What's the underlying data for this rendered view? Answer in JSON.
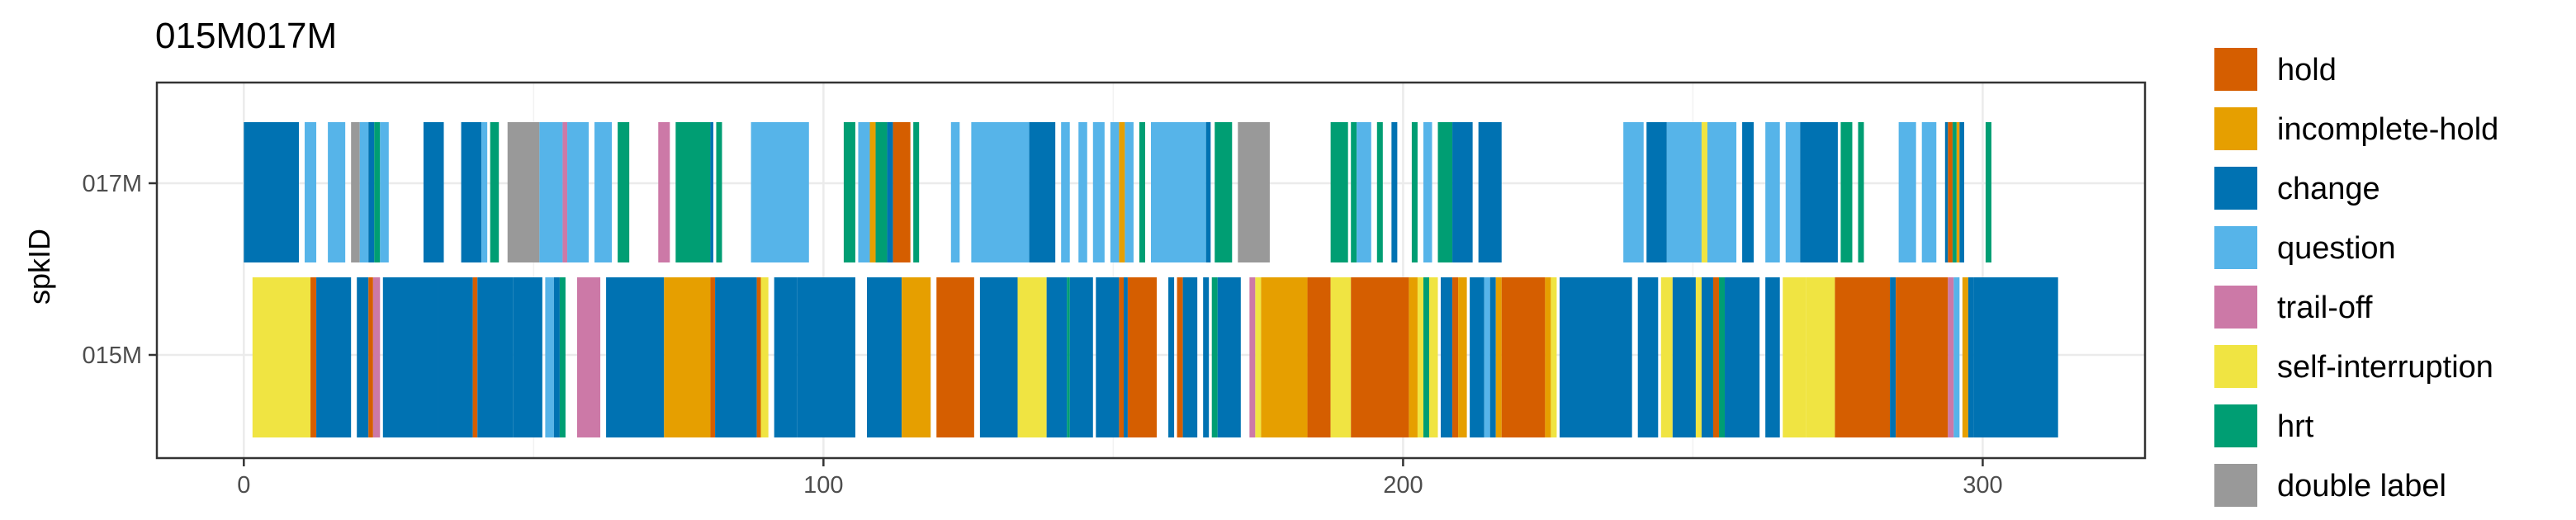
{
  "chart_data": {
    "type": "timeline",
    "title": "015M017M",
    "xlabel": "",
    "ylabel": "spkID",
    "xlim": [
      -15,
      328
    ],
    "x_ticks": [
      0,
      100,
      200,
      300
    ],
    "speakers": [
      "017M",
      "015M"
    ],
    "grid": true,
    "legend_position": "right",
    "categories": [
      {
        "name": "hold",
        "color": "#D55E00"
      },
      {
        "name": "incomplete-hold",
        "color": "#E69F00"
      },
      {
        "name": "change",
        "color": "#0072B2"
      },
      {
        "name": "question",
        "color": "#56B4E9"
      },
      {
        "name": "trail-off",
        "color": "#CC79A7"
      },
      {
        "name": "self-interruption",
        "color": "#F0E442"
      },
      {
        "name": "hrt",
        "color": "#009E73"
      },
      {
        "name": "double label",
        "color": "#999999"
      }
    ],
    "segments": [
      {
        "speaker": "017M",
        "category": "change",
        "start": 0.0,
        "end": 9.5
      },
      {
        "speaker": "017M",
        "category": "question",
        "start": 10.5,
        "end": 12.5
      },
      {
        "speaker": "017M",
        "category": "question",
        "start": 14.5,
        "end": 17.5
      },
      {
        "speaker": "017M",
        "category": "double label",
        "start": 18.5,
        "end": 20.0
      },
      {
        "speaker": "017M",
        "category": "question",
        "start": 20.0,
        "end": 21.5
      },
      {
        "speaker": "017M",
        "category": "change",
        "start": 21.5,
        "end": 22.5
      },
      {
        "speaker": "017M",
        "category": "hrt",
        "start": 22.5,
        "end": 23.5
      },
      {
        "speaker": "017M",
        "category": "question",
        "start": 23.5,
        "end": 25.0
      },
      {
        "speaker": "017M",
        "category": "change",
        "start": 31.0,
        "end": 34.5
      },
      {
        "speaker": "017M",
        "category": "change",
        "start": 37.5,
        "end": 41.0
      },
      {
        "speaker": "017M",
        "category": "question",
        "start": 41.0,
        "end": 42.0
      },
      {
        "speaker": "017M",
        "category": "hrt",
        "start": 42.5,
        "end": 44.0
      },
      {
        "speaker": "017M",
        "category": "double label",
        "start": 45.5,
        "end": 51.0
      },
      {
        "speaker": "017M",
        "category": "question",
        "start": 51.0,
        "end": 55.0
      },
      {
        "speaker": "017M",
        "category": "trail-off",
        "start": 55.0,
        "end": 55.8
      },
      {
        "speaker": "017M",
        "category": "question",
        "start": 55.8,
        "end": 59.5
      },
      {
        "speaker": "017M",
        "category": "question",
        "start": 60.5,
        "end": 63.5
      },
      {
        "speaker": "017M",
        "category": "hrt",
        "start": 64.5,
        "end": 66.5
      },
      {
        "speaker": "017M",
        "category": "trail-off",
        "start": 71.5,
        "end": 73.5
      },
      {
        "speaker": "017M",
        "category": "hrt",
        "start": 74.5,
        "end": 80.5
      },
      {
        "speaker": "017M",
        "category": "change",
        "start": 80.5,
        "end": 81.0
      },
      {
        "speaker": "017M",
        "category": "hrt",
        "start": 81.5,
        "end": 82.5
      },
      {
        "speaker": "017M",
        "category": "question",
        "start": 87.5,
        "end": 97.5
      },
      {
        "speaker": "017M",
        "category": "hrt",
        "start": 103.5,
        "end": 105.5
      },
      {
        "speaker": "017M",
        "category": "question",
        "start": 106.0,
        "end": 108.0
      },
      {
        "speaker": "017M",
        "category": "incomplete-hold",
        "start": 108.0,
        "end": 109.0
      },
      {
        "speaker": "017M",
        "category": "hrt",
        "start": 109.0,
        "end": 111.0
      },
      {
        "speaker": "017M",
        "category": "change",
        "start": 111.0,
        "end": 112.0
      },
      {
        "speaker": "017M",
        "category": "hold",
        "start": 112.0,
        "end": 115.0
      },
      {
        "speaker": "017M",
        "category": "hrt",
        "start": 115.5,
        "end": 116.5
      },
      {
        "speaker": "017M",
        "category": "question",
        "start": 122.0,
        "end": 123.5
      },
      {
        "speaker": "017M",
        "category": "question",
        "start": 125.5,
        "end": 135.5
      },
      {
        "speaker": "017M",
        "category": "change",
        "start": 135.5,
        "end": 140.0
      },
      {
        "speaker": "017M",
        "category": "question",
        "start": 141.0,
        "end": 142.5
      },
      {
        "speaker": "017M",
        "category": "question",
        "start": 144.0,
        "end": 145.5
      },
      {
        "speaker": "017M",
        "category": "question",
        "start": 146.5,
        "end": 148.5
      },
      {
        "speaker": "017M",
        "category": "question",
        "start": 149.5,
        "end": 151.0
      },
      {
        "speaker": "017M",
        "category": "incomplete-hold",
        "start": 151.0,
        "end": 152.0
      },
      {
        "speaker": "017M",
        "category": "question",
        "start": 152.0,
        "end": 153.5
      },
      {
        "speaker": "017M",
        "category": "hrt",
        "start": 154.5,
        "end": 155.5
      },
      {
        "speaker": "017M",
        "category": "question",
        "start": 156.5,
        "end": 166.0
      },
      {
        "speaker": "017M",
        "category": "change",
        "start": 166.0,
        "end": 166.8
      },
      {
        "speaker": "017M",
        "category": "hrt",
        "start": 167.5,
        "end": 170.5
      },
      {
        "speaker": "017M",
        "category": "double label",
        "start": 171.5,
        "end": 177.0
      },
      {
        "speaker": "017M",
        "category": "hrt",
        "start": 187.5,
        "end": 190.5
      },
      {
        "speaker": "017M",
        "category": "hrt",
        "start": 191.0,
        "end": 192.0
      },
      {
        "speaker": "017M",
        "category": "question",
        "start": 192.0,
        "end": 194.5
      },
      {
        "speaker": "017M",
        "category": "hrt",
        "start": 195.5,
        "end": 196.5
      },
      {
        "speaker": "017M",
        "category": "change",
        "start": 198.0,
        "end": 199.0
      },
      {
        "speaker": "017M",
        "category": "hrt",
        "start": 201.5,
        "end": 202.5
      },
      {
        "speaker": "017M",
        "category": "question",
        "start": 203.5,
        "end": 205.0
      },
      {
        "speaker": "017M",
        "category": "hrt",
        "start": 206.0,
        "end": 208.5
      },
      {
        "speaker": "017M",
        "category": "change",
        "start": 208.5,
        "end": 212.0
      },
      {
        "speaker": "017M",
        "category": "change",
        "start": 213.0,
        "end": 217.0
      },
      {
        "speaker": "017M",
        "category": "question",
        "start": 238.0,
        "end": 241.5
      },
      {
        "speaker": "017M",
        "category": "change",
        "start": 242.0,
        "end": 245.5
      },
      {
        "speaker": "017M",
        "category": "question",
        "start": 245.5,
        "end": 251.5
      },
      {
        "speaker": "017M",
        "category": "self-interruption",
        "start": 251.5,
        "end": 252.5
      },
      {
        "speaker": "017M",
        "category": "question",
        "start": 252.5,
        "end": 257.5
      },
      {
        "speaker": "017M",
        "category": "change",
        "start": 258.5,
        "end": 260.5
      },
      {
        "speaker": "017M",
        "category": "question",
        "start": 262.5,
        "end": 265.0
      },
      {
        "speaker": "017M",
        "category": "question",
        "start": 266.0,
        "end": 268.5
      },
      {
        "speaker": "017M",
        "category": "change",
        "start": 268.5,
        "end": 275.0
      },
      {
        "speaker": "017M",
        "category": "hrt",
        "start": 275.5,
        "end": 277.5
      },
      {
        "speaker": "017M",
        "category": "hrt",
        "start": 278.5,
        "end": 279.5
      },
      {
        "speaker": "017M",
        "category": "question",
        "start": 285.5,
        "end": 288.5
      },
      {
        "speaker": "017M",
        "category": "question",
        "start": 289.5,
        "end": 292.0
      },
      {
        "speaker": "017M",
        "category": "change",
        "start": 293.5,
        "end": 294.0
      },
      {
        "speaker": "017M",
        "category": "hold",
        "start": 294.0,
        "end": 294.8
      },
      {
        "speaker": "017M",
        "category": "hrt",
        "start": 294.8,
        "end": 295.5
      },
      {
        "speaker": "017M",
        "category": "incomplete-hold",
        "start": 295.5,
        "end": 296.0
      },
      {
        "speaker": "017M",
        "category": "change",
        "start": 296.0,
        "end": 296.8
      },
      {
        "speaker": "017M",
        "category": "hrt",
        "start": 300.5,
        "end": 301.5
      },
      {
        "speaker": "015M",
        "category": "self-interruption",
        "start": 1.5,
        "end": 11.5
      },
      {
        "speaker": "015M",
        "category": "hold",
        "start": 11.5,
        "end": 12.5
      },
      {
        "speaker": "015M",
        "category": "change",
        "start": 12.5,
        "end": 18.5
      },
      {
        "speaker": "015M",
        "category": "change",
        "start": 19.5,
        "end": 21.5
      },
      {
        "speaker": "015M",
        "category": "hold",
        "start": 21.5,
        "end": 22.3
      },
      {
        "speaker": "015M",
        "category": "trail-off",
        "start": 22.3,
        "end": 23.5
      },
      {
        "speaker": "015M",
        "category": "change",
        "start": 24.0,
        "end": 33.5
      },
      {
        "speaker": "015M",
        "category": "change",
        "start": 33.5,
        "end": 39.5
      },
      {
        "speaker": "015M",
        "category": "hold",
        "start": 39.5,
        "end": 40.3
      },
      {
        "speaker": "015M",
        "category": "change",
        "start": 40.3,
        "end": 46.5
      },
      {
        "speaker": "015M",
        "category": "change",
        "start": 46.5,
        "end": 51.5
      },
      {
        "speaker": "015M",
        "category": "question",
        "start": 52.0,
        "end": 53.5
      },
      {
        "speaker": "015M",
        "category": "change",
        "start": 53.5,
        "end": 54.5
      },
      {
        "speaker": "015M",
        "category": "hrt",
        "start": 54.5,
        "end": 55.5
      },
      {
        "speaker": "015M",
        "category": "trail-off",
        "start": 57.5,
        "end": 61.5
      },
      {
        "speaker": "015M",
        "category": "change",
        "start": 62.5,
        "end": 72.5
      },
      {
        "speaker": "015M",
        "category": "incomplete-hold",
        "start": 72.5,
        "end": 80.5
      },
      {
        "speaker": "015M",
        "category": "hold",
        "start": 80.5,
        "end": 81.3
      },
      {
        "speaker": "015M",
        "category": "change",
        "start": 81.3,
        "end": 88.5
      },
      {
        "speaker": "015M",
        "category": "hold",
        "start": 88.5,
        "end": 89.2
      },
      {
        "speaker": "015M",
        "category": "self-interruption",
        "start": 89.2,
        "end": 90.5
      },
      {
        "speaker": "015M",
        "category": "change",
        "start": 91.5,
        "end": 95.5
      },
      {
        "speaker": "015M",
        "category": "change",
        "start": 95.5,
        "end": 105.5
      },
      {
        "speaker": "015M",
        "category": "change",
        "start": 107.5,
        "end": 113.5
      },
      {
        "speaker": "015M",
        "category": "incomplete-hold",
        "start": 113.5,
        "end": 118.5
      },
      {
        "speaker": "015M",
        "category": "hold",
        "start": 119.5,
        "end": 126.0
      },
      {
        "speaker": "015M",
        "category": "change",
        "start": 127.0,
        "end": 133.5
      },
      {
        "speaker": "015M",
        "category": "self-interruption",
        "start": 133.5,
        "end": 138.5
      },
      {
        "speaker": "015M",
        "category": "change",
        "start": 138.5,
        "end": 142.0
      },
      {
        "speaker": "015M",
        "category": "hrt",
        "start": 142.0,
        "end": 142.5
      },
      {
        "speaker": "015M",
        "category": "change",
        "start": 142.5,
        "end": 146.5
      },
      {
        "speaker": "015M",
        "category": "change",
        "start": 147.0,
        "end": 151.0
      },
      {
        "speaker": "015M",
        "category": "hold",
        "start": 151.0,
        "end": 151.8
      },
      {
        "speaker": "015M",
        "category": "change",
        "start": 151.8,
        "end": 152.5
      },
      {
        "speaker": "015M",
        "category": "hold",
        "start": 152.5,
        "end": 157.5
      },
      {
        "speaker": "015M",
        "category": "change",
        "start": 159.5,
        "end": 160.5
      },
      {
        "speaker": "015M",
        "category": "hold",
        "start": 161.0,
        "end": 162.0
      },
      {
        "speaker": "015M",
        "category": "change",
        "start": 162.0,
        "end": 164.5
      },
      {
        "speaker": "015M",
        "category": "change",
        "start": 165.5,
        "end": 166.5
      },
      {
        "speaker": "015M",
        "category": "hrt",
        "start": 167.0,
        "end": 168.0
      },
      {
        "speaker": "015M",
        "category": "change",
        "start": 168.0,
        "end": 172.0
      },
      {
        "speaker": "015M",
        "category": "trail-off",
        "start": 173.5,
        "end": 174.5
      },
      {
        "speaker": "015M",
        "category": "self-interruption",
        "start": 174.5,
        "end": 175.5
      },
      {
        "speaker": "015M",
        "category": "incomplete-hold",
        "start": 175.5,
        "end": 183.5
      },
      {
        "speaker": "015M",
        "category": "hold",
        "start": 183.5,
        "end": 187.5
      },
      {
        "speaker": "015M",
        "category": "self-interruption",
        "start": 187.5,
        "end": 191.0
      },
      {
        "speaker": "015M",
        "category": "hold",
        "start": 191.0,
        "end": 201.0
      },
      {
        "speaker": "015M",
        "category": "incomplete-hold",
        "start": 201.0,
        "end": 202.5
      },
      {
        "speaker": "015M",
        "category": "self-interruption",
        "start": 202.5,
        "end": 203.5
      },
      {
        "speaker": "015M",
        "category": "hrt",
        "start": 203.5,
        "end": 204.5
      },
      {
        "speaker": "015M",
        "category": "self-interruption",
        "start": 204.5,
        "end": 206.0
      },
      {
        "speaker": "015M",
        "category": "change",
        "start": 206.5,
        "end": 208.5
      },
      {
        "speaker": "015M",
        "category": "hold",
        "start": 208.5,
        "end": 209.5
      },
      {
        "speaker": "015M",
        "category": "incomplete-hold",
        "start": 209.5,
        "end": 211.0
      },
      {
        "speaker": "015M",
        "category": "change",
        "start": 211.5,
        "end": 214.0
      },
      {
        "speaker": "015M",
        "category": "question",
        "start": 214.0,
        "end": 215.0
      },
      {
        "speaker": "015M",
        "category": "change",
        "start": 215.0,
        "end": 216.0
      },
      {
        "speaker": "015M",
        "category": "incomplete-hold",
        "start": 216.0,
        "end": 217.0
      },
      {
        "speaker": "015M",
        "category": "hold",
        "start": 217.0,
        "end": 224.5
      },
      {
        "speaker": "015M",
        "category": "incomplete-hold",
        "start": 224.5,
        "end": 225.5
      },
      {
        "speaker": "015M",
        "category": "self-interruption",
        "start": 225.5,
        "end": 226.5
      },
      {
        "speaker": "015M",
        "category": "change",
        "start": 227.0,
        "end": 239.5
      },
      {
        "speaker": "015M",
        "category": "change",
        "start": 240.5,
        "end": 244.0
      },
      {
        "speaker": "015M",
        "category": "self-interruption",
        "start": 244.5,
        "end": 246.5
      },
      {
        "speaker": "015M",
        "category": "change",
        "start": 246.5,
        "end": 250.5
      },
      {
        "speaker": "015M",
        "category": "self-interruption",
        "start": 250.5,
        "end": 251.5
      },
      {
        "speaker": "015M",
        "category": "change",
        "start": 251.5,
        "end": 253.5
      },
      {
        "speaker": "015M",
        "category": "hold",
        "start": 253.5,
        "end": 254.5
      },
      {
        "speaker": "015M",
        "category": "hrt",
        "start": 254.5,
        "end": 255.5
      },
      {
        "speaker": "015M",
        "category": "change",
        "start": 255.5,
        "end": 261.5
      },
      {
        "speaker": "015M",
        "category": "change",
        "start": 262.5,
        "end": 265.0
      },
      {
        "speaker": "015M",
        "category": "self-interruption",
        "start": 265.5,
        "end": 269.5
      },
      {
        "speaker": "015M",
        "category": "self-interruption",
        "start": 269.5,
        "end": 274.5
      },
      {
        "speaker": "015M",
        "category": "hold",
        "start": 274.5,
        "end": 284.0
      },
      {
        "speaker": "015M",
        "category": "change",
        "start": 284.0,
        "end": 285.0
      },
      {
        "speaker": "015M",
        "category": "hold",
        "start": 285.0,
        "end": 294.0
      },
      {
        "speaker": "015M",
        "category": "trail-off",
        "start": 294.0,
        "end": 295.0
      },
      {
        "speaker": "015M",
        "category": "question",
        "start": 295.0,
        "end": 296.0
      },
      {
        "speaker": "015M",
        "category": "incomplete-hold",
        "start": 296.5,
        "end": 297.5
      },
      {
        "speaker": "015M",
        "category": "change",
        "start": 297.5,
        "end": 298.5
      },
      {
        "speaker": "015M",
        "category": "change",
        "start": 298.5,
        "end": 313.0
      }
    ]
  }
}
